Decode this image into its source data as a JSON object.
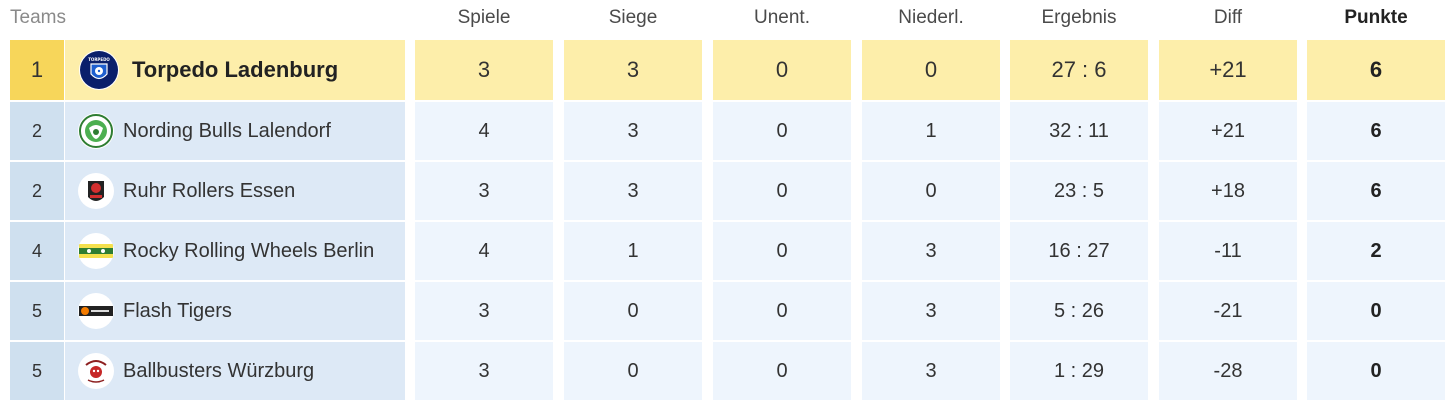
{
  "header": {
    "teams": "Teams",
    "spiele": "Spiele",
    "siege": "Siege",
    "unent": "Unent.",
    "niederl": "Niederl.",
    "ergebnis": "Ergebnis",
    "diff": "Diff",
    "punkte": "Punkte"
  },
  "rows": [
    {
      "rank": "1",
      "team": "Torpedo Ladenburg",
      "logo": "torpedo-ladenburg-logo",
      "spiele": "3",
      "siege": "3",
      "unent": "0",
      "niederl": "0",
      "ergebnis": "27 : 6",
      "diff": "+21",
      "punkte": "6"
    },
    {
      "rank": "2",
      "team": "Nording Bulls Lalendorf",
      "logo": "nording-bulls-logo",
      "spiele": "4",
      "siege": "3",
      "unent": "0",
      "niederl": "1",
      "ergebnis": "32 : 11",
      "diff": "+21",
      "punkte": "6"
    },
    {
      "rank": "2",
      "team": "Ruhr Rollers Essen",
      "logo": "ruhr-rollers-logo",
      "spiele": "3",
      "siege": "3",
      "unent": "0",
      "niederl": "0",
      "ergebnis": "23 : 5",
      "diff": "+18",
      "punkte": "6"
    },
    {
      "rank": "4",
      "team": "Rocky Rolling Wheels Berlin",
      "logo": "rocky-rolling-wheels-logo",
      "spiele": "4",
      "siege": "1",
      "unent": "0",
      "niederl": "3",
      "ergebnis": "16 : 27",
      "diff": "-11",
      "punkte": "2"
    },
    {
      "rank": "5",
      "team": "Flash Tigers",
      "logo": "flash-tigers-logo",
      "spiele": "3",
      "siege": "0",
      "unent": "0",
      "niederl": "3",
      "ergebnis": "5 : 26",
      "diff": "-21",
      "punkte": "0"
    },
    {
      "rank": "5",
      "team": "Ballbusters Würzburg",
      "logo": "ballbusters-logo",
      "spiele": "3",
      "siege": "0",
      "unent": "0",
      "niederl": "3",
      "ergebnis": "1 : 29",
      "diff": "-28",
      "punkte": "0"
    }
  ],
  "colors": {
    "leader_rank": "#f7d65a",
    "leader_row": "#fdeeaa",
    "rank_bg": "#cfe0ef",
    "team_bg": "#dde9f6",
    "stat_bg": "#eef5fd"
  }
}
